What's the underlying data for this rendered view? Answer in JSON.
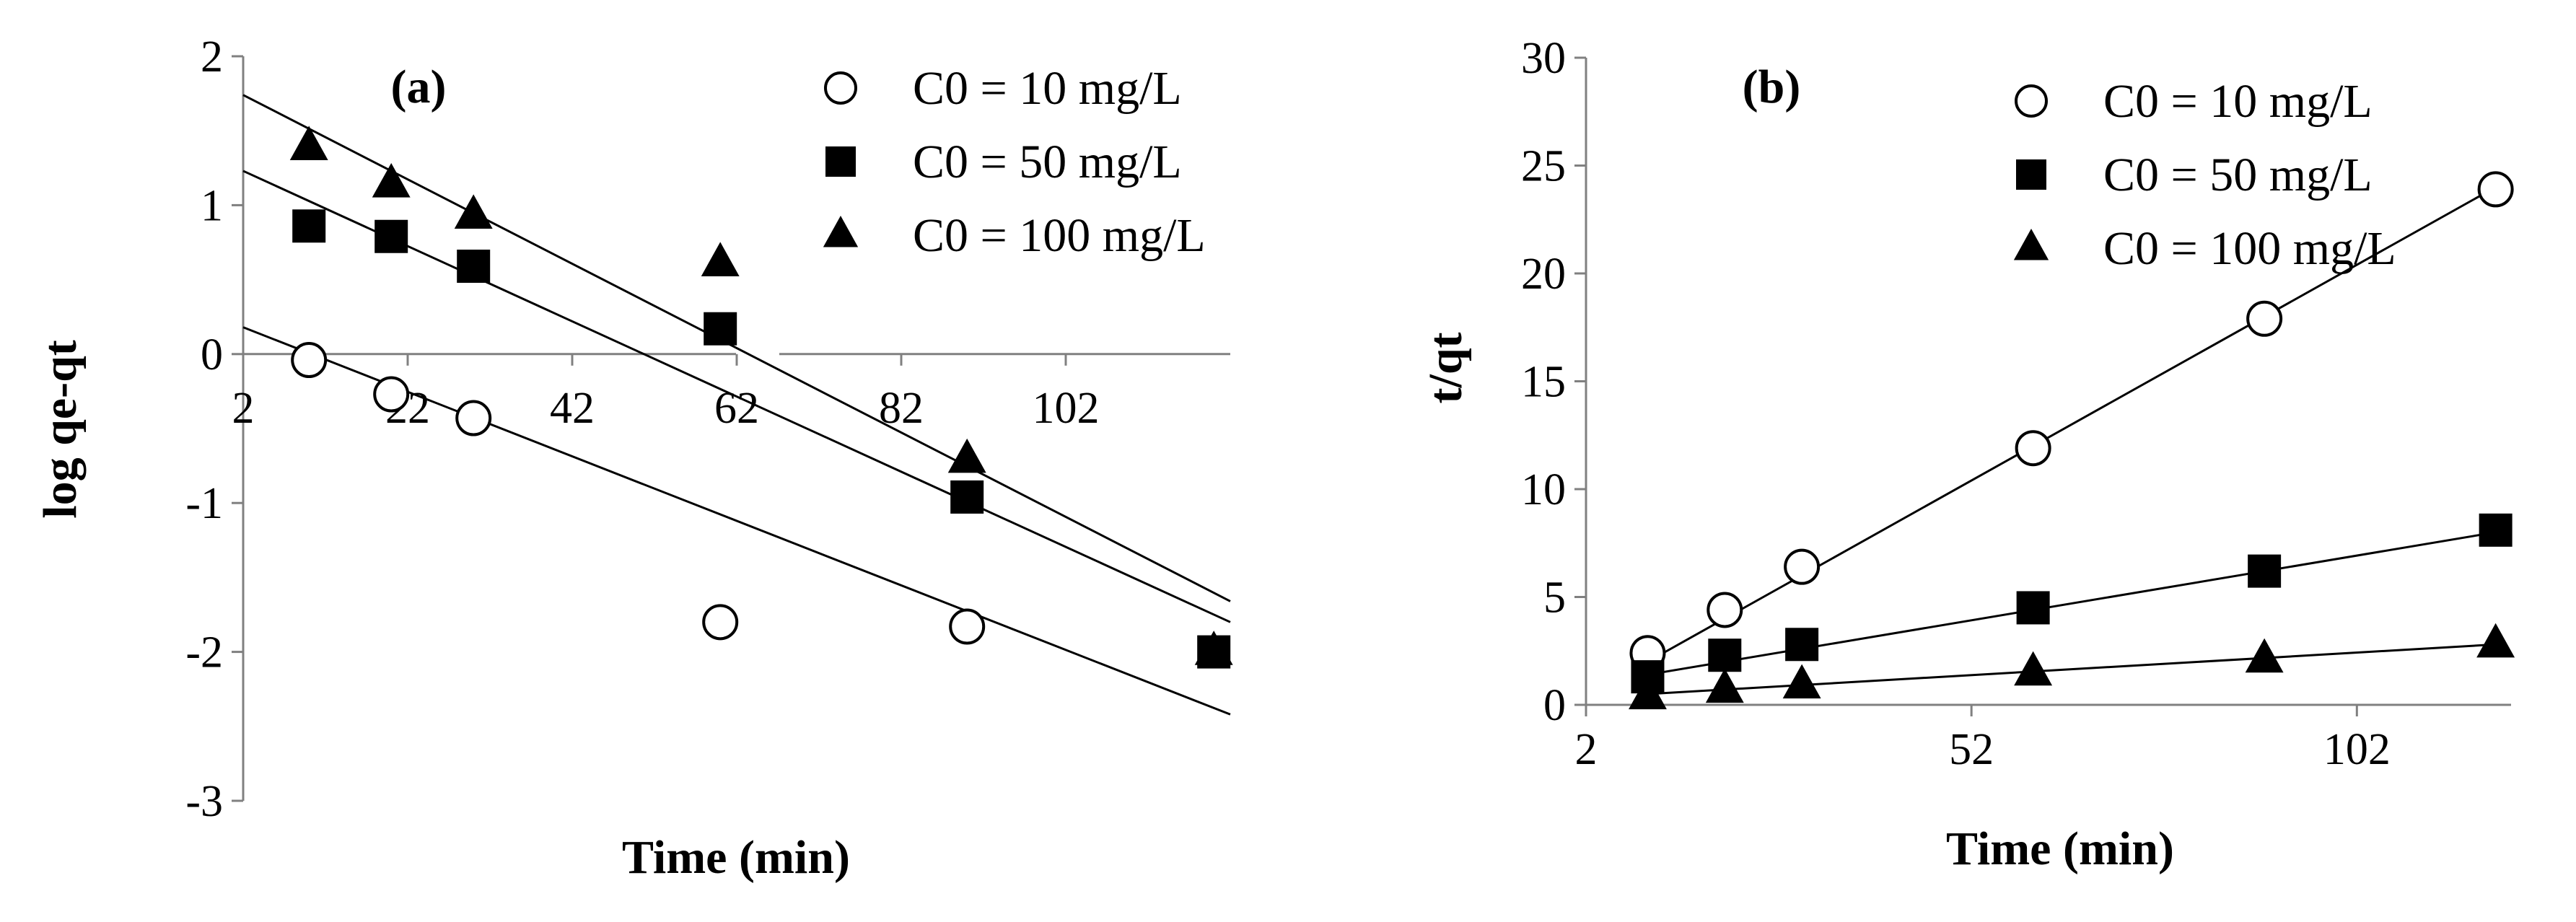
{
  "chart_data": [
    {
      "type": "scatter",
      "title": "(a)",
      "xlabel": "Time (min)",
      "ylabel": "log qe-qt",
      "xlim": [
        2,
        122
      ],
      "ylim": [
        -3,
        2
      ],
      "x_ticks": [
        "2",
        "22",
        "42",
        "62",
        "82",
        "102"
      ],
      "y_ticks": [
        "2",
        "1",
        "0",
        "-1",
        "-2",
        "-3"
      ],
      "legend_position": "top-right",
      "series": [
        {
          "name": "C0 = 10 mg/L",
          "marker": "circle-open",
          "x": [
            10,
            20,
            30,
            60,
            90
          ],
          "y": [
            -0.04,
            -0.27,
            -0.43,
            -1.8,
            -1.83
          ],
          "fit": {
            "x": [
              2,
              122
            ],
            "y": [
              0.18,
              -2.42
            ]
          }
        },
        {
          "name": "C0 = 50 mg/L",
          "marker": "square-filled",
          "x": [
            10,
            20,
            30,
            60,
            90,
            120
          ],
          "y": [
            0.86,
            0.79,
            0.59,
            0.17,
            -0.96,
            -2.0
          ],
          "fit": {
            "x": [
              2,
              122
            ],
            "y": [
              1.23,
              -1.8
            ]
          }
        },
        {
          "name": "C0 = 100 mg/L",
          "marker": "triangle-filled",
          "x": [
            10,
            20,
            30,
            60,
            90,
            120
          ],
          "y": [
            1.39,
            1.14,
            0.93,
            0.61,
            -0.71,
            -2.0
          ],
          "fit": {
            "x": [
              2,
              122
            ],
            "y": [
              1.74,
              -1.66
            ]
          }
        }
      ]
    },
    {
      "type": "scatter",
      "title": "(b)",
      "xlabel": "Time (min)",
      "ylabel": "t/qt",
      "xlim": [
        2,
        122
      ],
      "ylim": [
        0,
        30
      ],
      "x_ticks": [
        "2",
        "52",
        "102"
      ],
      "y_ticks": [
        "30",
        "25",
        "20",
        "15",
        "10",
        "5",
        "0"
      ],
      "legend_position": "top-right",
      "series": [
        {
          "name": "C0 = 10 mg/L",
          "marker": "circle-open",
          "x": [
            10,
            20,
            30,
            60,
            90,
            120
          ],
          "y": [
            2.4,
            4.4,
            6.4,
            11.9,
            17.9,
            23.9
          ],
          "fit": {
            "x": [
              10,
              120
            ],
            "y": [
              2.0,
              24.0
            ]
          }
        },
        {
          "name": "C0 = 50 mg/L",
          "marker": "square-filled",
          "x": [
            10,
            20,
            30,
            60,
            90,
            120
          ],
          "y": [
            1.3,
            2.3,
            2.8,
            4.5,
            6.2,
            8.1
          ],
          "fit": {
            "x": [
              10,
              120
            ],
            "y": [
              1.4,
              8.0
            ]
          }
        },
        {
          "name": "C0 = 100 mg/L",
          "marker": "triangle-filled",
          "x": [
            10,
            20,
            30,
            60,
            90,
            120
          ],
          "y": [
            0.4,
            0.7,
            0.9,
            1.5,
            2.1,
            2.8
          ],
          "fit": {
            "x": [
              10,
              120
            ],
            "y": [
              0.5,
              2.8
            ]
          }
        }
      ]
    }
  ]
}
